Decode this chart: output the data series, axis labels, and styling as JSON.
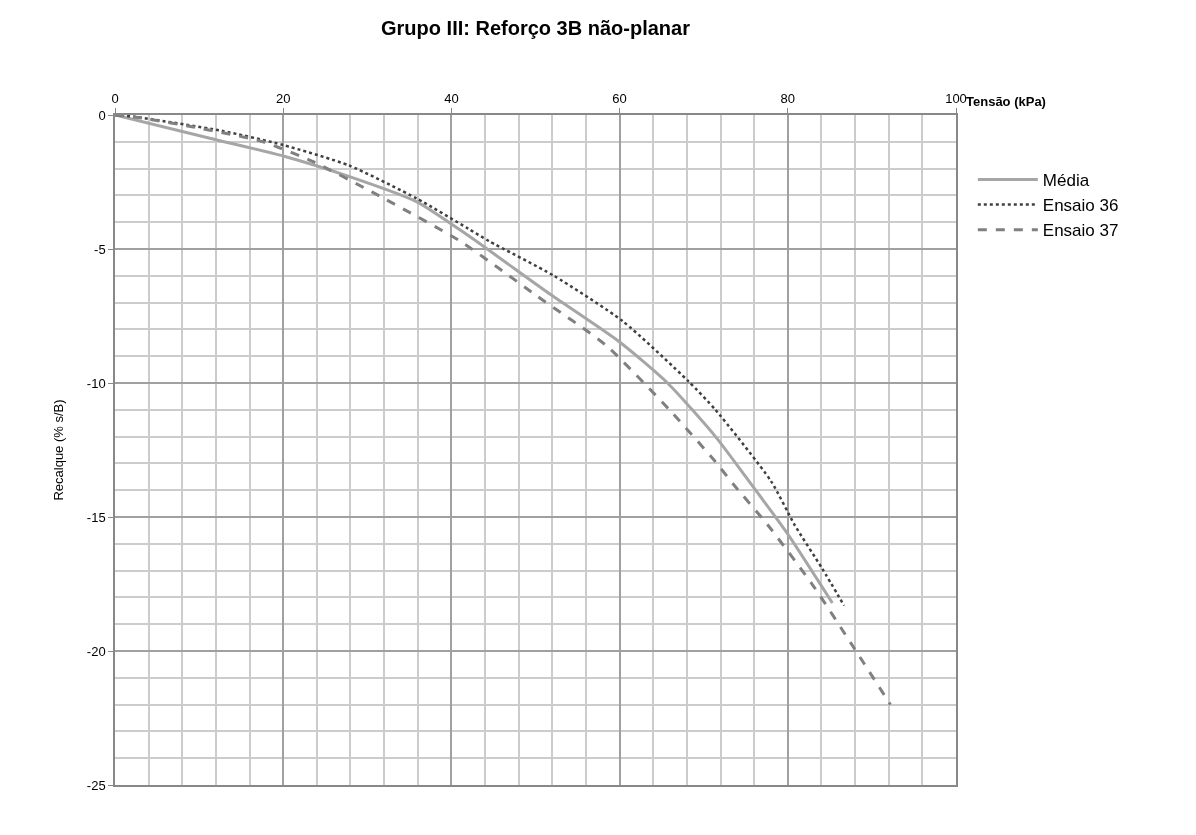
{
  "chart_data": {
    "type": "line",
    "title": "Grupo III: Reforço 3B não-planar",
    "xlabel": "Tensão (kPa)",
    "ylabel": "Recalque (% s/B)",
    "xlim": [
      0,
      100
    ],
    "ylim": [
      -25,
      0
    ],
    "xticks": [
      0,
      {
        "value": 4,
        "label": null
      },
      {
        "value": 8,
        "label": null
      },
      {
        "value": 12,
        "label": null
      },
      {
        "value": 16,
        "label": null
      },
      20,
      {
        "value": 24,
        "label": null
      },
      {
        "value": 28,
        "label": null
      },
      {
        "value": 32,
        "label": null
      },
      {
        "value": 36,
        "label": null
      },
      40,
      {
        "value": 44,
        "label": null
      },
      {
        "value": 48,
        "label": null
      },
      {
        "value": 52,
        "label": null
      },
      {
        "value": 56,
        "label": null
      },
      60,
      {
        "value": 64,
        "label": null
      },
      {
        "value": 68,
        "label": null
      },
      {
        "value": 72,
        "label": null
      },
      {
        "value": 76,
        "label": null
      },
      80,
      {
        "value": 84,
        "label": null
      },
      {
        "value": 88,
        "label": null
      },
      {
        "value": 92,
        "label": null
      },
      {
        "value": 96,
        "label": null
      },
      100
    ],
    "yticks": [
      -25,
      {
        "value": -24,
        "label": null
      },
      {
        "value": -23,
        "label": null
      },
      {
        "value": -22,
        "label": null
      },
      {
        "value": -21,
        "label": null
      },
      -20,
      {
        "value": -19,
        "label": null
      },
      {
        "value": -18,
        "label": null
      },
      {
        "value": -17,
        "label": null
      },
      {
        "value": -16,
        "label": null
      },
      -15,
      {
        "value": -14,
        "label": null
      },
      {
        "value": -13,
        "label": null
      },
      {
        "value": -12,
        "label": null
      },
      {
        "value": -11,
        "label": null
      },
      -10,
      {
        "value": -9,
        "label": null
      },
      {
        "value": -8,
        "label": null
      },
      {
        "value": -7,
        "label": null
      },
      {
        "value": -6,
        "label": null
      },
      -5,
      {
        "value": -4,
        "label": null
      },
      {
        "value": -3,
        "label": null
      },
      {
        "value": -2,
        "label": null
      },
      {
        "value": -1,
        "label": null
      },
      0
    ],
    "grid": true,
    "legend": "right",
    "marker": "none",
    "series": [
      {
        "name": "Média",
        "color": "#a6a6a6",
        "line_style": "solid",
        "x": [
          0,
          11.4,
          20,
          27.8,
          35.9,
          42,
          51.8,
          60,
          65.7,
          71.4,
          75.1,
          80,
          85.3
        ],
        "values": [
          0,
          -0.88,
          -1.53,
          -2.29,
          -3.24,
          -4.5,
          -6.7,
          -8.47,
          -10,
          -12.0,
          -13.54,
          -15.64,
          -18.21
        ]
      },
      {
        "name": "Ensaio 36",
        "color": "#404040",
        "line_style": "dotted",
        "x": [
          0,
          2.2,
          12.7,
          20,
          27.8,
          35.9,
          42,
          44.5,
          52.2,
          60.4,
          68.2,
          71.4,
          78,
          80.8,
          84.1,
          86.7
        ],
        "values": [
          0,
          -0.06,
          -0.59,
          -1.12,
          -1.88,
          -3.12,
          -4.24,
          -4.71,
          -6.0,
          -7.7,
          -9.94,
          -11.0,
          -13.66,
          -15.29,
          -16.93,
          -18.31
        ]
      },
      {
        "name": "Ensaio 37",
        "color": "#808080",
        "line_style": "dashed",
        "x": [
          0,
          3.3,
          10.2,
          17.6,
          23.7,
          30.6,
          41,
          50.2,
          58.4,
          66.1,
          71.4,
          73.5,
          77.6,
          82.9,
          87.8,
          92.2
        ],
        "values": [
          0,
          -0.12,
          -0.5,
          -1.0,
          -1.76,
          -2.88,
          -4.7,
          -6.76,
          -8.6,
          -11.06,
          -12.94,
          -13.77,
          -15.29,
          -17.51,
          -19.85,
          -22.0
        ]
      }
    ]
  }
}
